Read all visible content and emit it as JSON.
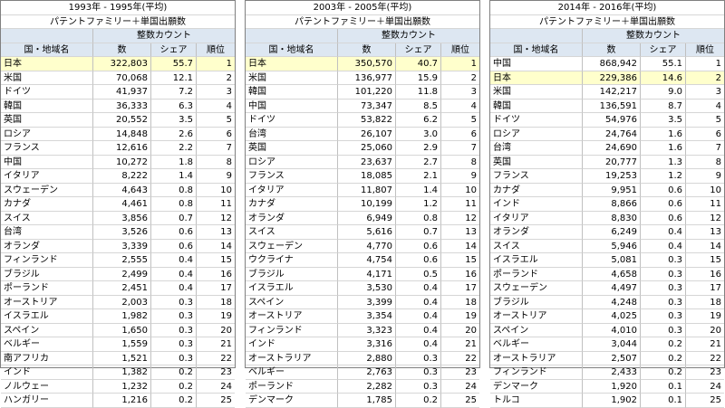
{
  "labels": {
    "family": "パテントファミリー＋単国出願数",
    "count": "整数カウント",
    "col_name": "国・地域名",
    "col_num": "数",
    "col_share": "シェア",
    "col_rank": "順位"
  },
  "panels": [
    {
      "title": "1993年 - 1995年(平均)",
      "rows": [
        {
          "name": "日本",
          "num": "322,803",
          "share": "55.7",
          "rank": "1",
          "hl": true
        },
        {
          "name": "米国",
          "num": "70,068",
          "share": "12.1",
          "rank": "2"
        },
        {
          "name": "ドイツ",
          "num": "41,937",
          "share": "7.2",
          "rank": "3"
        },
        {
          "name": "韓国",
          "num": "36,333",
          "share": "6.3",
          "rank": "4"
        },
        {
          "name": "英国",
          "num": "20,552",
          "share": "3.5",
          "rank": "5"
        },
        {
          "name": "ロシア",
          "num": "14,848",
          "share": "2.6",
          "rank": "6"
        },
        {
          "name": "フランス",
          "num": "12,616",
          "share": "2.2",
          "rank": "7"
        },
        {
          "name": "中国",
          "num": "10,272",
          "share": "1.8",
          "rank": "8"
        },
        {
          "name": "イタリア",
          "num": "8,222",
          "share": "1.4",
          "rank": "9"
        },
        {
          "name": "スウェーデン",
          "num": "4,643",
          "share": "0.8",
          "rank": "10"
        },
        {
          "name": "カナダ",
          "num": "4,461",
          "share": "0.8",
          "rank": "11"
        },
        {
          "name": "スイス",
          "num": "3,856",
          "share": "0.7",
          "rank": "12"
        },
        {
          "name": "台湾",
          "num": "3,526",
          "share": "0.6",
          "rank": "13"
        },
        {
          "name": "オランダ",
          "num": "3,339",
          "share": "0.6",
          "rank": "14"
        },
        {
          "name": "フィンランド",
          "num": "2,555",
          "share": "0.4",
          "rank": "15"
        },
        {
          "name": "ブラジル",
          "num": "2,499",
          "share": "0.4",
          "rank": "16"
        },
        {
          "name": "ポーランド",
          "num": "2,451",
          "share": "0.4",
          "rank": "17"
        },
        {
          "name": "オーストリア",
          "num": "2,003",
          "share": "0.3",
          "rank": "18"
        },
        {
          "name": "イスラエル",
          "num": "1,982",
          "share": "0.3",
          "rank": "19"
        },
        {
          "name": "スペイン",
          "num": "1,650",
          "share": "0.3",
          "rank": "20"
        },
        {
          "name": "ベルギー",
          "num": "1,559",
          "share": "0.3",
          "rank": "21"
        },
        {
          "name": "南アフリカ",
          "num": "1,521",
          "share": "0.3",
          "rank": "22"
        },
        {
          "name": "インド",
          "num": "1,382",
          "share": "0.2",
          "rank": "23"
        },
        {
          "name": "ノルウェー",
          "num": "1,232",
          "share": "0.2",
          "rank": "24"
        },
        {
          "name": "ハンガリー",
          "num": "1,216",
          "share": "0.2",
          "rank": "25"
        }
      ]
    },
    {
      "title": "2003年 - 2005年(平均)",
      "rows": [
        {
          "name": "日本",
          "num": "350,570",
          "share": "40.7",
          "rank": "1",
          "hl": true
        },
        {
          "name": "米国",
          "num": "136,977",
          "share": "15.9",
          "rank": "2"
        },
        {
          "name": "韓国",
          "num": "101,220",
          "share": "11.8",
          "rank": "3"
        },
        {
          "name": "中国",
          "num": "73,347",
          "share": "8.5",
          "rank": "4"
        },
        {
          "name": "ドイツ",
          "num": "53,822",
          "share": "6.2",
          "rank": "5"
        },
        {
          "name": "台湾",
          "num": "26,107",
          "share": "3.0",
          "rank": "6"
        },
        {
          "name": "英国",
          "num": "25,060",
          "share": "2.9",
          "rank": "7"
        },
        {
          "name": "ロシア",
          "num": "23,637",
          "share": "2.7",
          "rank": "8"
        },
        {
          "name": "フランス",
          "num": "18,085",
          "share": "2.1",
          "rank": "9"
        },
        {
          "name": "イタリア",
          "num": "11,807",
          "share": "1.4",
          "rank": "10"
        },
        {
          "name": "カナダ",
          "num": "10,199",
          "share": "1.2",
          "rank": "11"
        },
        {
          "name": "オランダ",
          "num": "6,949",
          "share": "0.8",
          "rank": "12"
        },
        {
          "name": "スイス",
          "num": "5,616",
          "share": "0.7",
          "rank": "13"
        },
        {
          "name": "スウェーデン",
          "num": "4,770",
          "share": "0.6",
          "rank": "14"
        },
        {
          "name": "ウクライナ",
          "num": "4,754",
          "share": "0.6",
          "rank": "15"
        },
        {
          "name": "ブラジル",
          "num": "4,171",
          "share": "0.5",
          "rank": "16"
        },
        {
          "name": "イスラエル",
          "num": "3,530",
          "share": "0.4",
          "rank": "17"
        },
        {
          "name": "スペイン",
          "num": "3,399",
          "share": "0.4",
          "rank": "18"
        },
        {
          "name": "オーストリア",
          "num": "3,354",
          "share": "0.4",
          "rank": "19"
        },
        {
          "name": "フィンランド",
          "num": "3,323",
          "share": "0.4",
          "rank": "20"
        },
        {
          "name": "インド",
          "num": "3,316",
          "share": "0.4",
          "rank": "21"
        },
        {
          "name": "オーストラリア",
          "num": "2,880",
          "share": "0.3",
          "rank": "22"
        },
        {
          "name": "ベルギー",
          "num": "2,763",
          "share": "0.3",
          "rank": "23"
        },
        {
          "name": "ポーランド",
          "num": "2,282",
          "share": "0.3",
          "rank": "24"
        },
        {
          "name": "デンマーク",
          "num": "1,785",
          "share": "0.2",
          "rank": "25"
        }
      ]
    },
    {
      "title": "2014年 - 2016年(平均)",
      "rows": [
        {
          "name": "中国",
          "num": "868,942",
          "share": "55.1",
          "rank": "1"
        },
        {
          "name": "日本",
          "num": "229,386",
          "share": "14.6",
          "rank": "2",
          "hl": true
        },
        {
          "name": "米国",
          "num": "142,217",
          "share": "9.0",
          "rank": "3"
        },
        {
          "name": "韓国",
          "num": "136,591",
          "share": "8.7",
          "rank": "4"
        },
        {
          "name": "ドイツ",
          "num": "54,976",
          "share": "3.5",
          "rank": "5"
        },
        {
          "name": "ロシア",
          "num": "24,764",
          "share": "1.6",
          "rank": "6"
        },
        {
          "name": "台湾",
          "num": "24,690",
          "share": "1.6",
          "rank": "7"
        },
        {
          "name": "英国",
          "num": "20,777",
          "share": "1.3",
          "rank": "8"
        },
        {
          "name": "フランス",
          "num": "19,253",
          "share": "1.2",
          "rank": "9"
        },
        {
          "name": "カナダ",
          "num": "9,951",
          "share": "0.6",
          "rank": "10"
        },
        {
          "name": "インド",
          "num": "8,866",
          "share": "0.6",
          "rank": "11"
        },
        {
          "name": "イタリア",
          "num": "8,830",
          "share": "0.6",
          "rank": "12"
        },
        {
          "name": "オランダ",
          "num": "6,249",
          "share": "0.4",
          "rank": "13"
        },
        {
          "name": "スイス",
          "num": "5,946",
          "share": "0.4",
          "rank": "14"
        },
        {
          "name": "イスラエル",
          "num": "5,081",
          "share": "0.3",
          "rank": "15"
        },
        {
          "name": "ポーランド",
          "num": "4,658",
          "share": "0.3",
          "rank": "16"
        },
        {
          "name": "スウェーデン",
          "num": "4,497",
          "share": "0.3",
          "rank": "17"
        },
        {
          "name": "ブラジル",
          "num": "4,248",
          "share": "0.3",
          "rank": "18"
        },
        {
          "name": "オーストリア",
          "num": "4,025",
          "share": "0.3",
          "rank": "19"
        },
        {
          "name": "スペイン",
          "num": "4,010",
          "share": "0.3",
          "rank": "20"
        },
        {
          "name": "ベルギー",
          "num": "3,044",
          "share": "0.2",
          "rank": "21"
        },
        {
          "name": "オーストラリア",
          "num": "2,507",
          "share": "0.2",
          "rank": "22"
        },
        {
          "name": "フィンランド",
          "num": "2,433",
          "share": "0.2",
          "rank": "23"
        },
        {
          "name": "デンマーク",
          "num": "1,920",
          "share": "0.1",
          "rank": "24"
        },
        {
          "name": "トルコ",
          "num": "1,902",
          "share": "0.1",
          "rank": "25"
        }
      ]
    }
  ]
}
